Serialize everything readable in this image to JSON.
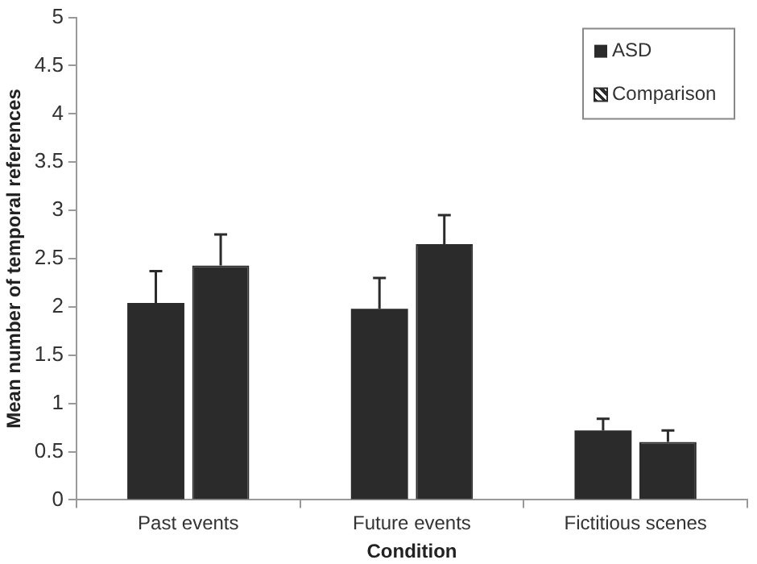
{
  "chart_data": {
    "type": "bar",
    "xlabel": "Condition",
    "ylabel": "Mean number of temporal references",
    "categories": [
      "Past events",
      "Future events",
      "Fictitious scenes"
    ],
    "series": [
      {
        "name": "ASD",
        "color": "#2b2b2b",
        "values": [
          2.04,
          1.98,
          0.72
        ],
        "errors": [
          [
            2.04,
            2.37
          ],
          [
            1.98,
            2.3
          ],
          [
            0.72,
            0.84
          ]
        ]
      },
      {
        "name": "Comparison",
        "color": "#2b2b2b",
        "values": [
          2.43,
          2.65,
          0.6
        ],
        "errors": [
          [
            2.43,
            2.75
          ],
          [
            2.65,
            2.95
          ],
          [
            0.6,
            0.72
          ]
        ]
      }
    ],
    "ylim": [
      0,
      5
    ],
    "yticks": [
      0,
      0.5,
      1,
      1.5,
      2,
      2.5,
      3,
      3.5,
      4,
      4.5,
      5
    ],
    "grid": false,
    "legend": "top right"
  }
}
